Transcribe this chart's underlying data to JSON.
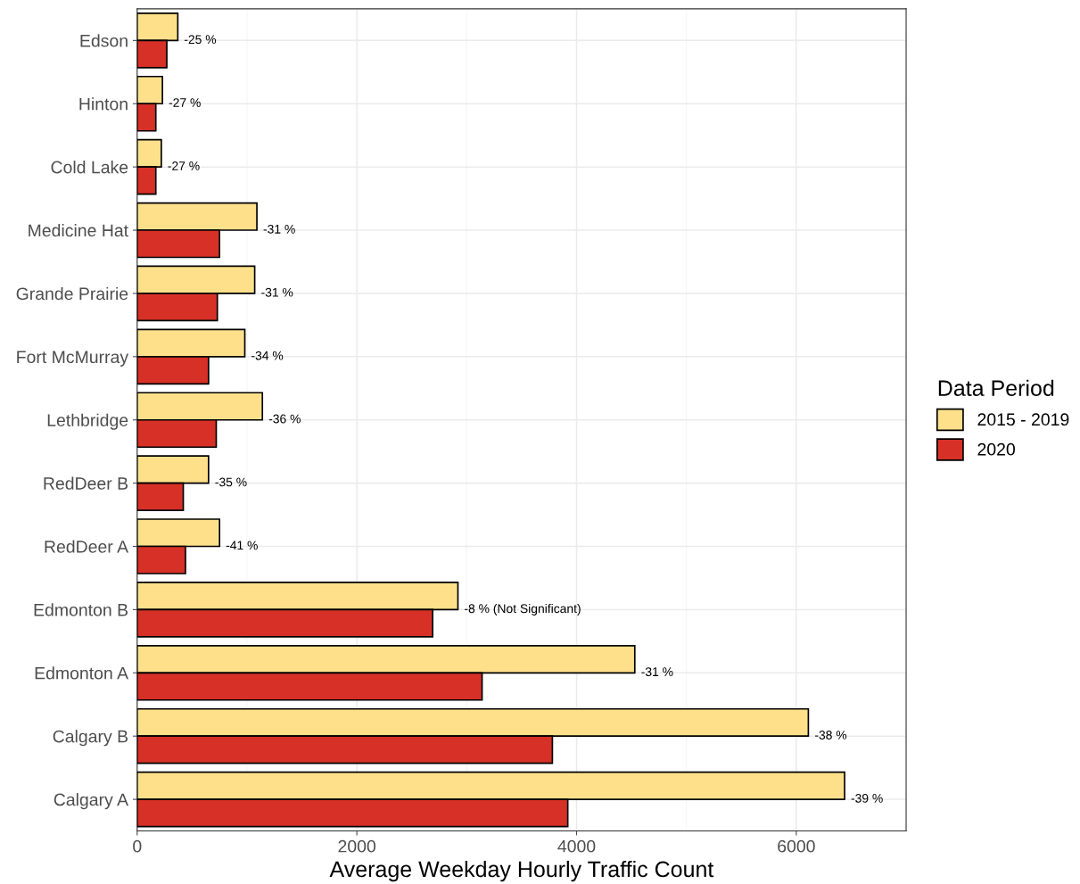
{
  "chart_data": {
    "type": "bar",
    "orientation": "horizontal",
    "xlabel": "Average Weekday Hourly Traffic Count",
    "legend_title": "Data Period",
    "categories": [
      "Edson",
      "Hinton",
      "Cold Lake",
      "Medicine Hat",
      "Grande Prairie",
      "Fort McMurray",
      "Lethbridge",
      "RedDeer B",
      "RedDeer A",
      "Edmonton B",
      "Edmonton A",
      "Calgary B",
      "Calgary A"
    ],
    "series": [
      {
        "name": "2015 - 2019",
        "color": "#fee08b",
        "values": [
          370,
          230,
          220,
          1090,
          1070,
          980,
          1140,
          650,
          750,
          2920,
          4530,
          6110,
          6440
        ]
      },
      {
        "name": "2020",
        "color": "#d73027",
        "values": [
          270,
          170,
          170,
          750,
          730,
          650,
          720,
          420,
          440,
          2690,
          3140,
          3780,
          3920
        ]
      }
    ],
    "xlim": [
      0,
      7000
    ],
    "xticks": [
      0,
      2000,
      4000,
      6000
    ],
    "grid": true,
    "legend": "right",
    "annotations": [
      "-25 %",
      "-27 %",
      "-27 %",
      "-31 %",
      "-31 %",
      "-34 %",
      "-36 %",
      "-35 %",
      "-41 %",
      "-8 % (Not Significant)",
      "-31 %",
      "-38 %",
      "-39 %"
    ]
  }
}
